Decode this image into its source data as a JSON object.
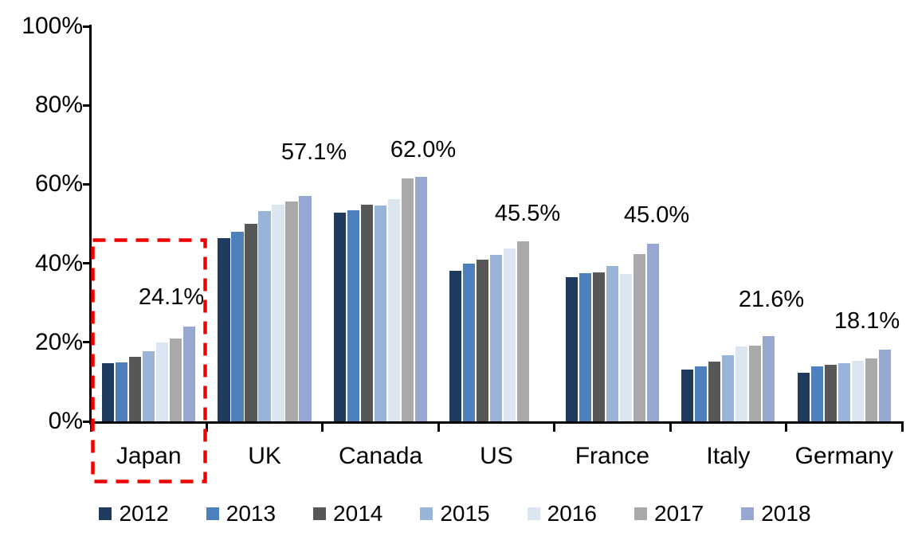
{
  "chart_data": {
    "type": "bar",
    "title": "",
    "xlabel": "",
    "ylabel": "",
    "categories": [
      "Japan",
      "UK",
      "Canada",
      "US",
      "France",
      "Italy",
      "Germany"
    ],
    "series": [
      {
        "name": "2012",
        "color": "#1E3A5F",
        "values": [
          14.7,
          46.3,
          52.9,
          38.2,
          36.5,
          13.1,
          12.4
        ]
      },
      {
        "name": "2013",
        "color": "#4E80BD",
        "values": [
          14.9,
          48.0,
          53.5,
          40.0,
          37.6,
          14.0,
          13.9
        ]
      },
      {
        "name": "2014",
        "color": "#575757",
        "values": [
          16.4,
          50.1,
          54.9,
          41.0,
          37.7,
          15.2,
          14.4
        ]
      },
      {
        "name": "2015",
        "color": "#99B4D9",
        "values": [
          17.8,
          53.2,
          54.7,
          42.2,
          39.3,
          16.8,
          14.8
        ]
      },
      {
        "name": "2016",
        "color": "#DCE6F2",
        "values": [
          19.9,
          54.8,
          56.2,
          43.7,
          37.3,
          19.0,
          15.4
        ]
      },
      {
        "name": "2017",
        "color": "#A9A9A9",
        "values": [
          21.0,
          55.7,
          61.6,
          45.5,
          42.3,
          19.2,
          15.9
        ]
      },
      {
        "name": "2018",
        "color": "#98A7D1",
        "values": [
          24.1,
          57.1,
          62.0,
          null,
          45.0,
          21.6,
          18.1
        ]
      }
    ],
    "ylim": [
      0,
      100
    ],
    "y_tick_labels": [
      "0%",
      "20%",
      "40%",
      "60%",
      "80%",
      "100%"
    ],
    "grid": false,
    "legend_position": "bottom",
    "legend_labels": [
      "2012",
      "2013",
      "2014",
      "2015",
      "2016",
      "2017",
      "2018"
    ],
    "annotations": [
      {
        "category": "Japan",
        "label": "24.1%"
      },
      {
        "category": "UK",
        "label": "57.1%"
      },
      {
        "category": "Canada",
        "label": "62.0%"
      },
      {
        "category": "US",
        "label": "45.5%"
      },
      {
        "category": "France",
        "label": "45.0%"
      },
      {
        "category": "Italy",
        "label": "21.6%"
      },
      {
        "category": "Germany",
        "label": "18.1%"
      }
    ],
    "highlight": {
      "category": "Japan",
      "shape": "dashed-rectangle",
      "color": "#F40000"
    },
    "axis_color": "#000000",
    "text_color": "#000000"
  }
}
